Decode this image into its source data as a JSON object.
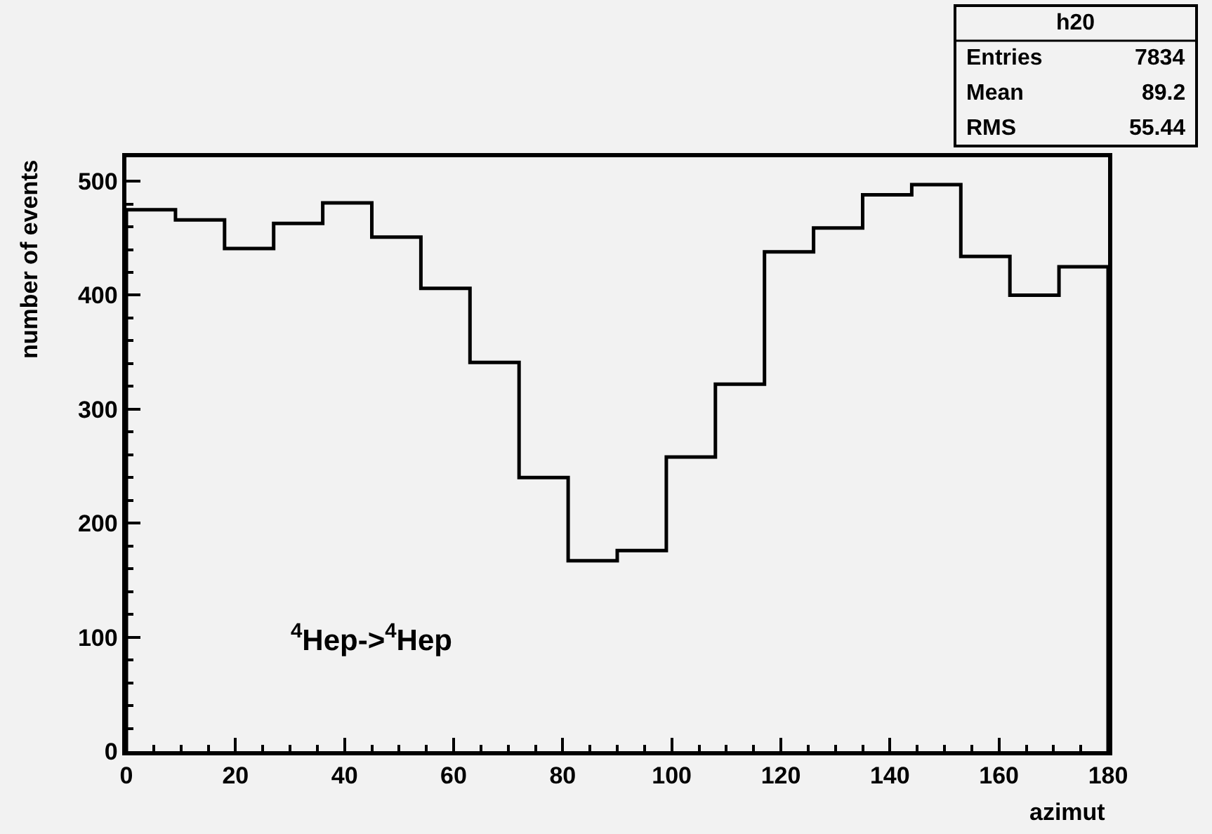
{
  "chart_data": {
    "type": "histogram",
    "bins": [
      0,
      9,
      18,
      27,
      36,
      45,
      54,
      63,
      72,
      81,
      90,
      99,
      108,
      117,
      126,
      135,
      144,
      153,
      162,
      171,
      180
    ],
    "values": [
      475,
      466,
      441,
      463,
      481,
      451,
      406,
      341,
      240,
      167,
      176,
      258,
      322,
      438,
      459,
      488,
      497,
      434,
      400,
      425
    ],
    "color": "#000000",
    "xlabel": "azimut",
    "ylabel": "number of events",
    "xlim": [
      0,
      180
    ],
    "xticks": [
      0,
      20,
      40,
      60,
      80,
      100,
      120,
      140,
      160,
      180
    ],
    "ylim": [
      0,
      521
    ],
    "yticks": [
      0,
      100,
      200,
      300,
      400,
      500
    ],
    "grid": false,
    "annotations": [
      "$^{4}$Hep->$^{4}$Hep",
      "h20",
      "Entries",
      "7834",
      "Mean",
      "89.2",
      "RMS",
      "55.44"
    ]
  }
}
